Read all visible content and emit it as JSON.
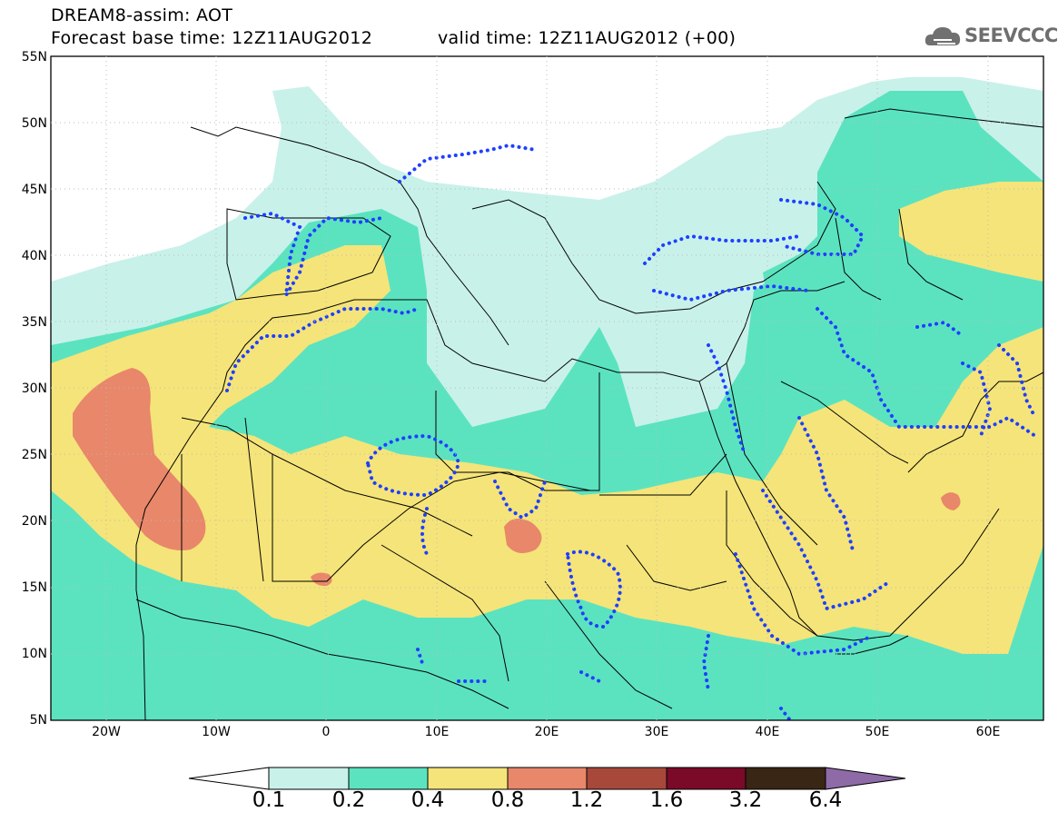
{
  "title_line1": "DREAM8-assim: AOT",
  "title_line2": "Forecast base time: 12Z11AUG2012",
  "valid_time": "valid time: 12Z11AUG2012 (+00)",
  "logo_text": "SEEVCCC",
  "lat_labels": [
    "55N",
    "50N",
    "45N",
    "40N",
    "35N",
    "30N",
    "25N",
    "20N",
    "15N",
    "10N",
    "5N"
  ],
  "lon_labels": [
    "20W",
    "10W",
    "0",
    "10E",
    "20E",
    "30E",
    "40E",
    "50E",
    "60E"
  ],
  "colorbar": {
    "labels": [
      "0.1",
      "0.2",
      "0.4",
      "0.8",
      "1.2",
      "1.6",
      "3.2",
      "6.4"
    ],
    "colors": [
      "#ffffff",
      "#c8f1ea",
      "#5be3c0",
      "#f5e479",
      "#e8876a",
      "#a8483a",
      "#7a0a28",
      "#3a2614",
      "#8e6aa7"
    ]
  },
  "fill_colors": {
    "level1": "#c8f1ea",
    "level2": "#5be3c0",
    "level3": "#f5e479",
    "level4": "#e8876a"
  },
  "contour_color": "#1f3fff"
}
